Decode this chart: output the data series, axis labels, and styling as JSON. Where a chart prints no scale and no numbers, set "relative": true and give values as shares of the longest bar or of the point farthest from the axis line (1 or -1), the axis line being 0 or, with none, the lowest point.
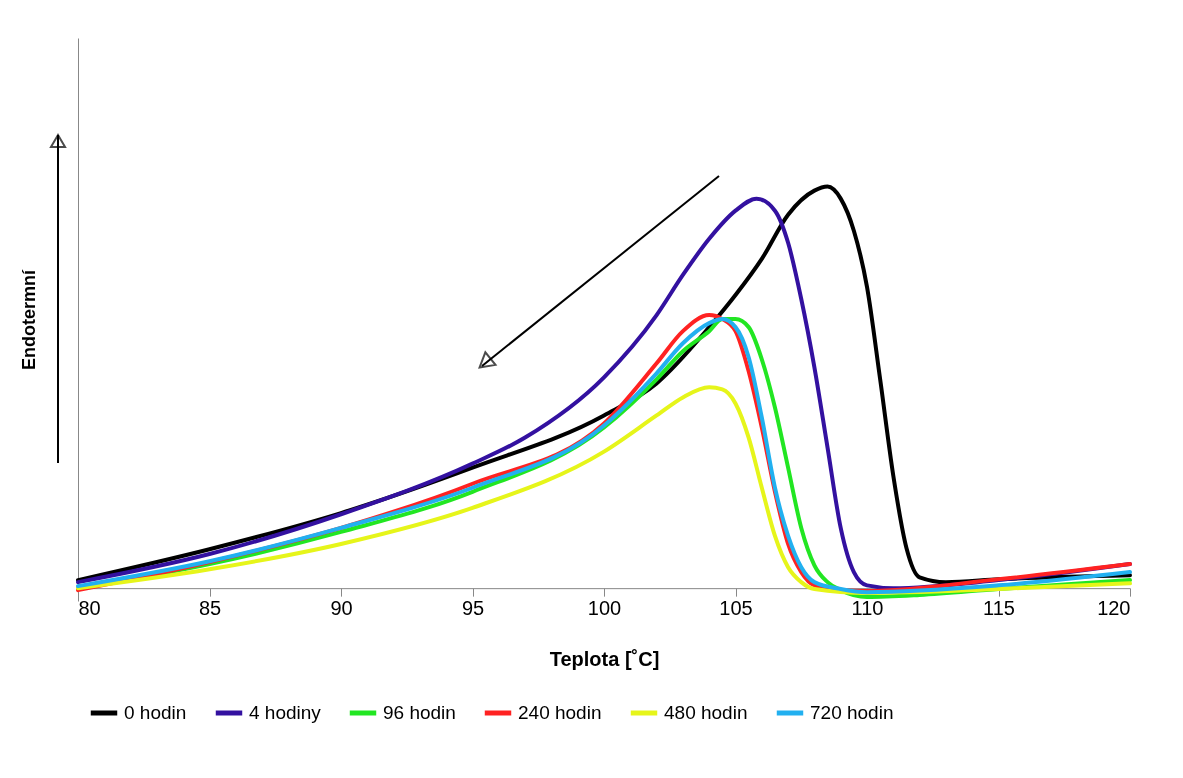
{
  "chart_data": {
    "type": "line",
    "relative": true,
    "xlabel": "Teplota [˚C]",
    "ylabel": "Endotermní",
    "xlim": [
      80,
      120
    ],
    "xticks": [
      80,
      85,
      90,
      95,
      100,
      105,
      110,
      115,
      120
    ],
    "grid": false,
    "legend": "bottom",
    "marker": "none",
    "line_style": "solid",
    "series": [
      {
        "name": "0 hodin",
        "color": "#000000",
        "x": [
          80,
          85,
          90,
          95,
          100,
          102,
          104,
          105,
          106,
          107,
          108,
          108.5,
          109,
          109.5,
          110,
          110.5,
          111,
          111.5,
          112,
          113,
          115,
          120
        ],
        "values": [
          0.02,
          0.097,
          0.187,
          0.3,
          0.43,
          0.51,
          0.65,
          0.73,
          0.82,
          0.93,
          0.99,
          1.0,
          0.97,
          0.89,
          0.75,
          0.52,
          0.28,
          0.1,
          0.027,
          0.015,
          0.022,
          0.032
        ]
      },
      {
        "name": "4 hodiny",
        "color": "#3311a0",
        "x": [
          80,
          85,
          90,
          95,
          97,
          100,
          102,
          103,
          104,
          105,
          105.8,
          106.5,
          107,
          107.5,
          108,
          108.5,
          109,
          109.5,
          110,
          111,
          115,
          120
        ],
        "values": [
          0.015,
          0.085,
          0.184,
          0.31,
          0.375,
          0.525,
          0.68,
          0.78,
          0.87,
          0.94,
          0.97,
          0.94,
          0.86,
          0.72,
          0.55,
          0.35,
          0.15,
          0.04,
          0.007,
          0.0,
          0.02,
          0.06
        ]
      },
      {
        "name": "96 hodin",
        "color": "#22e622",
        "x": [
          80,
          85,
          90,
          95,
          100,
          102,
          103,
          104,
          104.5,
          105,
          105.5,
          106,
          106.5,
          107,
          107.5,
          108,
          108.5,
          109,
          110,
          112,
          115,
          120
        ],
        "values": [
          0.0,
          0.06,
          0.14,
          0.24,
          0.4,
          0.52,
          0.59,
          0.64,
          0.67,
          0.67,
          0.65,
          0.57,
          0.45,
          0.3,
          0.15,
          0.057,
          0.015,
          -0.005,
          -0.022,
          -0.017,
          -0.002,
          0.02
        ]
      },
      {
        "name": "240 hodin",
        "color": "#ff2222",
        "x": [
          80,
          85,
          90,
          95,
          100,
          102,
          103,
          104,
          104.5,
          105,
          105.5,
          106,
          106.5,
          107,
          107.5,
          108,
          109,
          110,
          115,
          120
        ],
        "values": [
          -0.005,
          0.065,
          0.15,
          0.26,
          0.41,
          0.56,
          0.64,
          0.68,
          0.67,
          0.64,
          0.54,
          0.4,
          0.24,
          0.11,
          0.04,
          0.007,
          -0.005,
          -0.007,
          0.022,
          0.06
        ]
      },
      {
        "name": "480 hodin",
        "color": "#e6f51a",
        "x": [
          80,
          85,
          90,
          95,
          100,
          102,
          103,
          104,
          104.5,
          105,
          105.5,
          106,
          106.5,
          107,
          107.5,
          108,
          110,
          115,
          120
        ],
        "values": [
          0.0,
          0.047,
          0.11,
          0.2,
          0.34,
          0.43,
          0.475,
          0.5,
          0.495,
          0.46,
          0.375,
          0.25,
          0.13,
          0.052,
          0.015,
          -0.002,
          -0.012,
          -0.002,
          0.012
        ]
      },
      {
        "name": "720 hodin",
        "color": "#22b0f0",
        "x": [
          80,
          85,
          90,
          95,
          100,
          102,
          103,
          104,
          104.5,
          105,
          105.5,
          106,
          106.5,
          107,
          107.5,
          108,
          109,
          110,
          115,
          120
        ],
        "values": [
          0.005,
          0.067,
          0.15,
          0.25,
          0.405,
          0.535,
          0.61,
          0.66,
          0.67,
          0.65,
          0.575,
          0.425,
          0.25,
          0.13,
          0.052,
          0.015,
          -0.002,
          -0.01,
          0.007,
          0.04
        ]
      }
    ]
  }
}
